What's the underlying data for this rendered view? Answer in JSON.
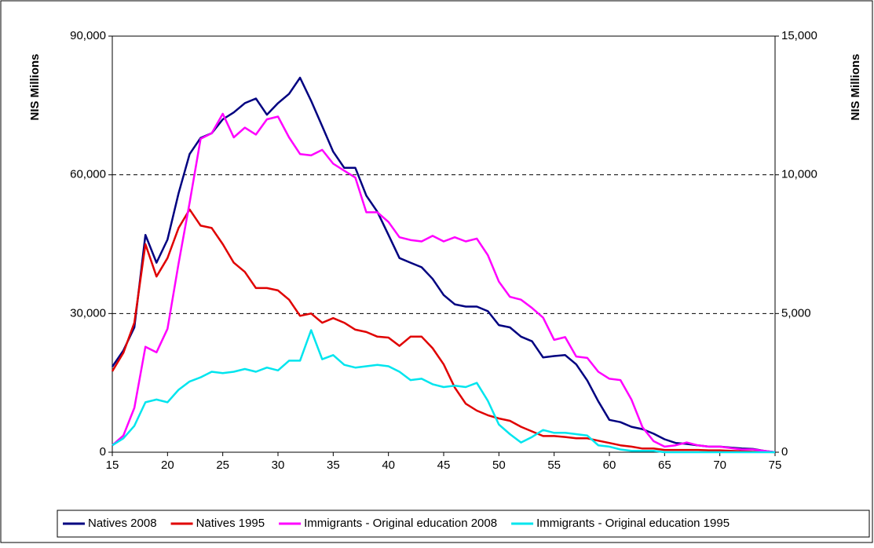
{
  "chart_data": {
    "type": "line",
    "y_label": "NIS Millions",
    "y2_label": "NIS Millions",
    "x": [
      15,
      16,
      17,
      18,
      19,
      20,
      21,
      22,
      23,
      24,
      25,
      26,
      27,
      28,
      29,
      30,
      31,
      32,
      33,
      34,
      35,
      36,
      37,
      38,
      39,
      40,
      41,
      42,
      43,
      44,
      45,
      46,
      47,
      48,
      49,
      50,
      51,
      52,
      53,
      54,
      55,
      56,
      57,
      58,
      59,
      60,
      61,
      62,
      63,
      64,
      65,
      66,
      67,
      68,
      69,
      70,
      71,
      72,
      73,
      74,
      75
    ],
    "xlim": [
      15,
      75
    ],
    "xticks": [
      15,
      20,
      25,
      30,
      35,
      40,
      45,
      50,
      55,
      60,
      65,
      70,
      75
    ],
    "ylim": [
      0,
      90000
    ],
    "yticks": [
      0,
      {
        "value": 30000,
        "label": "30,000"
      },
      {
        "value": 60000,
        "label": "60,000"
      },
      {
        "value": 90000,
        "label": "90,000"
      }
    ],
    "y2lim": [
      0,
      15000
    ],
    "y2ticks": [
      0,
      {
        "value": 5000,
        "label": "5,000"
      },
      {
        "value": 10000,
        "label": "10,000"
      },
      {
        "value": 15000,
        "label": "15,000"
      }
    ],
    "grid": true,
    "legend": "bottom",
    "series": [
      {
        "name": "Natives 2008",
        "color": "#000080",
        "values": [
          18500,
          22000,
          27000,
          47000,
          41000,
          46000,
          56000,
          64500,
          68000,
          69000,
          72000,
          73500,
          75500,
          76500,
          73000,
          75500,
          77500,
          81000,
          76000,
          70500,
          65000,
          61500,
          61500,
          55500,
          52000,
          47000,
          42000,
          41000,
          40000,
          37500,
          34000,
          32000,
          31500,
          31500,
          30500,
          27500,
          27000,
          25000,
          24000,
          20500,
          20800,
          21000,
          19000,
          15500,
          11000,
          7000,
          6500,
          5500,
          5000,
          4000,
          2800,
          2000,
          1800,
          1500,
          1200,
          1200,
          1000,
          800,
          700,
          300,
          0
        ]
      },
      {
        "name": "Natives 1995",
        "color": "#e00000",
        "values": [
          17500,
          21500,
          28000,
          45000,
          38000,
          42000,
          48500,
          52500,
          49000,
          48500,
          45000,
          41000,
          39000,
          35500,
          35500,
          35000,
          33000,
          29500,
          30000,
          28000,
          29000,
          28000,
          26500,
          26000,
          25000,
          24800,
          23000,
          25000,
          25000,
          22500,
          19000,
          14000,
          10500,
          9000,
          8000,
          7300,
          6800,
          5500,
          4500,
          3500,
          3500,
          3300,
          3000,
          3000,
          2500,
          2000,
          1500,
          1200,
          800,
          800,
          500,
          500,
          500,
          500,
          400,
          400,
          300,
          200,
          100,
          100,
          0
        ]
      },
      {
        "name": "Immigrants - Original education 2008",
        "color": "#ff00ff",
        "axis": "y2",
        "values": [
          250,
          600,
          1600,
          3800,
          3600,
          4450,
          6800,
          9000,
          11300,
          11500,
          12200,
          11350,
          11700,
          11450,
          12000,
          12100,
          11350,
          10750,
          10700,
          10900,
          10400,
          10150,
          9900,
          8650,
          8650,
          8300,
          7750,
          7650,
          7600,
          7800,
          7600,
          7750,
          7600,
          7700,
          7100,
          6150,
          5600,
          5500,
          5200,
          4850,
          4050,
          4150,
          3450,
          3400,
          2900,
          2650,
          2600,
          1900,
          900,
          400,
          200,
          250,
          350,
          250,
          200,
          200,
          150,
          100,
          100,
          50,
          0
        ]
      },
      {
        "name": "Immigrants - Original education 1995",
        "color": "#00e5ee",
        "axis": "y2",
        "values": [
          250,
          500,
          950,
          1800,
          1900,
          1800,
          2250,
          2550,
          2700,
          2900,
          2850,
          2900,
          3000,
          2900,
          3050,
          2950,
          3300,
          3300,
          4400,
          3350,
          3500,
          3150,
          3050,
          3100,
          3150,
          3100,
          2900,
          2600,
          2650,
          2450,
          2350,
          2400,
          2350,
          2500,
          1850,
          1000,
          650,
          350,
          550,
          800,
          700,
          700,
          650,
          600,
          250,
          200,
          100,
          50,
          50,
          50,
          0,
          0,
          0,
          0,
          0,
          0,
          0,
          0,
          0,
          0,
          0
        ]
      }
    ]
  }
}
